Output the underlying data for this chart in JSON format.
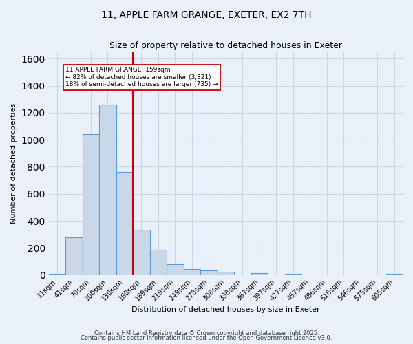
{
  "title_line1": "11, APPLE FARM GRANGE, EXETER, EX2 7TH",
  "title_line2": "Size of property relative to detached houses in Exeter",
  "xlabel": "Distribution of detached houses by size in Exeter",
  "ylabel": "Number of detached properties",
  "bar_labels": [
    "11sqm",
    "41sqm",
    "70sqm",
    "100sqm",
    "130sqm",
    "160sqm",
    "189sqm",
    "219sqm",
    "249sqm",
    "278sqm",
    "308sqm",
    "338sqm",
    "367sqm",
    "397sqm",
    "427sqm",
    "457sqm",
    "486sqm",
    "516sqm",
    "546sqm",
    "575sqm",
    "605sqm"
  ],
  "bar_values": [
    10,
    280,
    1040,
    1260,
    760,
    335,
    185,
    80,
    45,
    32,
    25,
    0,
    15,
    0,
    10,
    0,
    0,
    0,
    0,
    0,
    10
  ],
  "bar_color": "#c8d8e8",
  "bar_edge_color": "#5b9bd5",
  "ylim": [
    0,
    1650
  ],
  "yticks": [
    0,
    200,
    400,
    600,
    800,
    1000,
    1200,
    1400,
    1600
  ],
  "red_line_index": 5,
  "annotation_line1": "11 APPLE FARM GRANGE: 159sqm",
  "annotation_line2": "← 82% of detached houses are smaller (3,321)",
  "annotation_line3": "18% of semi-detached houses are larger (735) →",
  "annotation_box_color": "#ffffff",
  "annotation_box_edge_color": "#cc0000",
  "red_line_color": "#cc0000",
  "grid_color": "#c8d8e8",
  "background_color": "#eaf0f8",
  "footer_line1": "Contains HM Land Registry data © Crown copyright and database right 2025.",
  "footer_line2": "Contains public sector information licensed under the Open Government Licence v3.0."
}
